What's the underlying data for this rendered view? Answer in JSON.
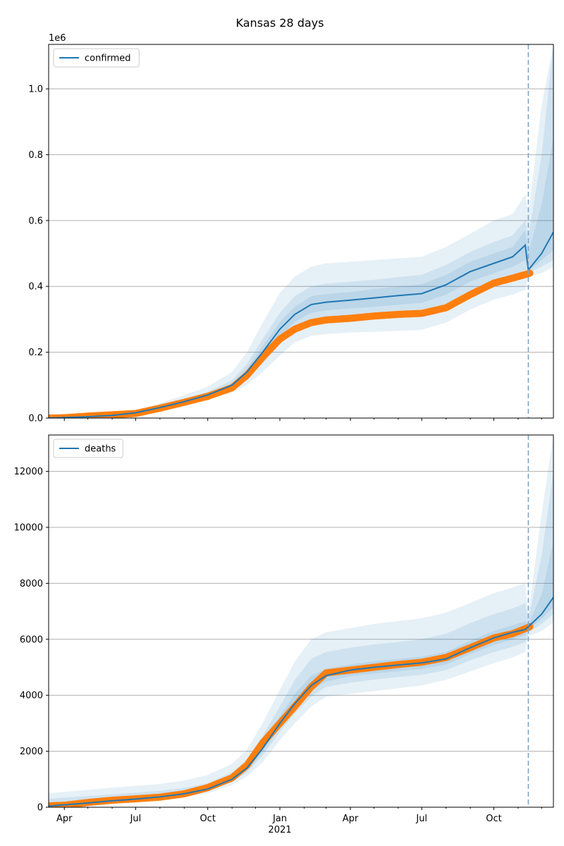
{
  "title": "Kansas 28 days",
  "colors": {
    "model": "#1f77b4",
    "observed": "#ff7f0e",
    "band": "#1f77b4",
    "grid": "#b0b0b0",
    "cutoff": "#7aa6cc"
  },
  "x_axis": {
    "tick_labels": [
      {
        "date": "2020-04-01",
        "label": "Apr"
      },
      {
        "date": "2020-07-01",
        "label": "Jul"
      },
      {
        "date": "2020-10-01",
        "label": "Oct"
      },
      {
        "date": "2021-01-01",
        "label": "Jan"
      },
      {
        "date": "2021-04-01",
        "label": "Apr"
      },
      {
        "date": "2021-07-01",
        "label": "Jul"
      },
      {
        "date": "2021-10-01",
        "label": "Oct"
      }
    ],
    "year_label": "2021"
  },
  "chart_data": [
    {
      "type": "line",
      "legend": "confirmed",
      "legend_position": "top-left",
      "offset_label": "1e6",
      "xlim": [
        "2020-03-12",
        "2021-12-16"
      ],
      "ylim": [
        0,
        1.135
      ],
      "yticks": [
        0.0,
        0.2,
        0.4,
        0.6,
        0.8,
        1.0
      ],
      "ytick_labels": [
        "0.0",
        "0.2",
        "0.4",
        "0.6",
        "0.8",
        "1.0"
      ],
      "grid": "y",
      "forecast_start": "2021-11-14",
      "model": {
        "x": [
          "2020-03-12",
          "2020-05-01",
          "2020-06-01",
          "2020-07-01",
          "2020-08-01",
          "2020-09-01",
          "2020-10-01",
          "2020-11-01",
          "2020-11-20",
          "2020-12-10",
          "2021-01-01",
          "2021-01-20",
          "2021-02-10",
          "2021-03-01",
          "2021-04-01",
          "2021-05-01",
          "2021-06-01",
          "2021-07-01",
          "2021-08-01",
          "2021-09-01",
          "2021-10-01",
          "2021-10-25",
          "2021-11-10",
          "2021-11-14",
          "2021-12-01",
          "2021-12-16"
        ],
        "y": [
          0.0,
          0.004,
          0.008,
          0.016,
          0.032,
          0.05,
          0.07,
          0.1,
          0.14,
          0.2,
          0.27,
          0.315,
          0.345,
          0.352,
          0.358,
          0.365,
          0.372,
          0.378,
          0.405,
          0.445,
          0.47,
          0.49,
          0.525,
          0.45,
          0.5,
          0.565
        ]
      },
      "bands": [
        {
          "lo": [
            0.0,
            0.0,
            0.0,
            0.0,
            0.0,
            0.0,
            0.0,
            0.0,
            0.0,
            0.0,
            0.0,
            0.0,
            0.0,
            0.0,
            0.0,
            0.0,
            0.0,
            0.0,
            0.0,
            0.0,
            0.0,
            0.0,
            0.0,
            0.0,
            0.0,
            0.0
          ],
          "hi": [
            0.0,
            0.0,
            0.0,
            0.0,
            0.0,
            0.0,
            0.0,
            0.0,
            0.0,
            0.0,
            0.0,
            0.0,
            0.0,
            0.0,
            0.0,
            0.0,
            0.0,
            0.0,
            0.0,
            0.0,
            0.0,
            0.0,
            0.0,
            0.0,
            0.0,
            0.0
          ]
        }
      ],
      "band_levels": [
        {
          "lo": [
            0.0,
            0.003,
            0.006,
            0.012,
            0.025,
            0.04,
            0.056,
            0.078,
            0.1,
            0.14,
            0.19,
            0.23,
            0.25,
            0.255,
            0.26,
            0.262,
            0.265,
            0.268,
            0.29,
            0.33,
            0.36,
            0.375,
            0.39,
            0.43,
            0.44,
            0.46
          ],
          "hi": [
            0.0,
            0.005,
            0.011,
            0.022,
            0.045,
            0.07,
            0.095,
            0.14,
            0.2,
            0.29,
            0.38,
            0.43,
            0.46,
            0.47,
            0.475,
            0.48,
            0.485,
            0.49,
            0.52,
            0.56,
            0.6,
            0.62,
            0.68,
            0.62,
            0.95,
            1.135
          ]
        },
        {
          "lo": [
            0.0,
            0.0035,
            0.007,
            0.014,
            0.028,
            0.045,
            0.062,
            0.088,
            0.12,
            0.165,
            0.225,
            0.268,
            0.295,
            0.3,
            0.305,
            0.31,
            0.315,
            0.32,
            0.345,
            0.385,
            0.41,
            0.43,
            0.45,
            0.44,
            0.46,
            0.48
          ],
          "hi": [
            0.0,
            0.0045,
            0.009,
            0.018,
            0.037,
            0.058,
            0.08,
            0.115,
            0.165,
            0.24,
            0.32,
            0.37,
            0.4,
            0.408,
            0.414,
            0.42,
            0.428,
            0.435,
            0.465,
            0.505,
            0.535,
            0.555,
            0.6,
            0.55,
            0.8,
            1.135
          ]
        },
        {
          "lo": [
            0.0,
            0.0038,
            0.0075,
            0.015,
            0.03,
            0.047,
            0.066,
            0.094,
            0.13,
            0.182,
            0.248,
            0.292,
            0.32,
            0.327,
            0.333,
            0.338,
            0.344,
            0.35,
            0.375,
            0.415,
            0.44,
            0.46,
            0.48,
            0.445,
            0.48,
            0.51
          ],
          "hi": [
            0.0,
            0.0042,
            0.0085,
            0.017,
            0.034,
            0.053,
            0.074,
            0.106,
            0.15,
            0.218,
            0.292,
            0.338,
            0.37,
            0.377,
            0.383,
            0.392,
            0.4,
            0.406,
            0.435,
            0.475,
            0.5,
            0.52,
            0.57,
            0.5,
            0.65,
            0.85
          ]
        }
      ],
      "observed": {
        "x": [
          "2020-03-12",
          "2020-04-01",
          "2020-05-01",
          "2020-06-01",
          "2020-07-01",
          "2020-08-01",
          "2020-09-01",
          "2020-10-01",
          "2020-11-01",
          "2020-11-20",
          "2020-12-10",
          "2021-01-01",
          "2021-01-20",
          "2021-02-10",
          "2021-03-01",
          "2021-04-01",
          "2021-05-01",
          "2021-06-01",
          "2021-07-01",
          "2021-08-01",
          "2021-09-01",
          "2021-10-01",
          "2021-10-25",
          "2021-11-16"
        ],
        "y": [
          0.0,
          0.001,
          0.006,
          0.01,
          0.014,
          0.03,
          0.048,
          0.066,
          0.092,
          0.13,
          0.185,
          0.24,
          0.27,
          0.29,
          0.298,
          0.303,
          0.31,
          0.315,
          0.318,
          0.335,
          0.375,
          0.41,
          0.425,
          0.44
        ]
      }
    },
    {
      "type": "line",
      "legend": "deaths",
      "legend_position": "top-left",
      "xlim": [
        "2020-03-12",
        "2021-12-16"
      ],
      "ylim": [
        0,
        13300
      ],
      "yticks": [
        0,
        2000,
        4000,
        6000,
        8000,
        10000,
        12000
      ],
      "ytick_labels": [
        "0",
        "2000",
        "4000",
        "6000",
        "8000",
        "10000",
        "12000"
      ],
      "grid": "y",
      "forecast_start": "2021-11-14",
      "model": {
        "x": [
          "2020-03-12",
          "2020-05-01",
          "2020-06-01",
          "2020-07-01",
          "2020-08-01",
          "2020-09-01",
          "2020-10-01",
          "2020-11-01",
          "2020-11-20",
          "2020-12-10",
          "2021-01-01",
          "2021-01-20",
          "2021-02-10",
          "2021-03-01",
          "2021-04-01",
          "2021-05-01",
          "2021-06-01",
          "2021-07-01",
          "2021-08-01",
          "2021-09-01",
          "2021-10-01",
          "2021-10-25",
          "2021-11-10",
          "2021-11-14",
          "2021-12-01",
          "2021-12-16"
        ],
        "y": [
          40,
          150,
          230,
          290,
          370,
          480,
          650,
          1000,
          1400,
          2100,
          3000,
          3700,
          4350,
          4700,
          4900,
          5000,
          5080,
          5160,
          5300,
          5700,
          6050,
          6250,
          6350,
          6450,
          6900,
          7500
        ]
      },
      "band_levels": [
        {
          "lo": [
            0,
            100,
            160,
            210,
            270,
            360,
            500,
            800,
            1100,
            1600,
            2400,
            3000,
            3600,
            3950,
            4050,
            4150,
            4250,
            4350,
            4550,
            4850,
            5150,
            5350,
            5550,
            6100,
            6300,
            6600
          ],
          "hi": [
            500,
            620,
            700,
            760,
            830,
            950,
            1150,
            1550,
            2050,
            3000,
            4200,
            5200,
            6000,
            6250,
            6400,
            6550,
            6650,
            6750,
            6950,
            7300,
            7650,
            7850,
            8000,
            6900,
            10500,
            13300
          ]
        },
        {
          "lo": [
            0,
            120,
            190,
            245,
            315,
            420,
            570,
            900,
            1250,
            1850,
            2700,
            3350,
            3950,
            4300,
            4450,
            4560,
            4650,
            4730,
            4900,
            5250,
            5550,
            5730,
            5900,
            6250,
            6550,
            6900
          ],
          "hi": [
            300,
            400,
            460,
            520,
            590,
            690,
            860,
            1250,
            1700,
            2550,
            3600,
            4550,
            5300,
            5550,
            5700,
            5820,
            5900,
            6000,
            6200,
            6580,
            6900,
            7100,
            7300,
            6700,
            9000,
            12000
          ]
        },
        {
          "lo": [
            0,
            135,
            210,
            270,
            345,
            455,
            615,
            955,
            1330,
            1980,
            2860,
            3530,
            4150,
            4500,
            4680,
            4780,
            4860,
            4940,
            5100,
            5470,
            5800,
            5990,
            6150,
            6350,
            6720,
            7150
          ],
          "hi": [
            150,
            250,
            310,
            360,
            430,
            530,
            710,
            1100,
            1500,
            2300,
            3250,
            4050,
            4700,
            4950,
            5100,
            5220,
            5300,
            5380,
            5550,
            5950,
            6300,
            6500,
            6650,
            6550,
            7600,
            9500
          ]
        }
      ],
      "observed": {
        "x": [
          "2020-03-12",
          "2020-04-01",
          "2020-05-01",
          "2020-06-01",
          "2020-07-01",
          "2020-08-01",
          "2020-09-01",
          "2020-10-01",
          "2020-11-01",
          "2020-11-20",
          "2020-12-10",
          "2021-01-01",
          "2021-01-20",
          "2021-02-10",
          "2021-03-01",
          "2021-04-01",
          "2021-05-01",
          "2021-06-01",
          "2021-07-01",
          "2021-08-01",
          "2021-09-01",
          "2021-10-01",
          "2021-10-25",
          "2021-11-16"
        ],
        "y": [
          50,
          70,
          170,
          250,
          300,
          360,
          480,
          700,
          1050,
          1500,
          2300,
          3000,
          3600,
          4300,
          4800,
          4900,
          5000,
          5100,
          5180,
          5350,
          5700,
          6050,
          6200,
          6450
        ]
      }
    }
  ]
}
